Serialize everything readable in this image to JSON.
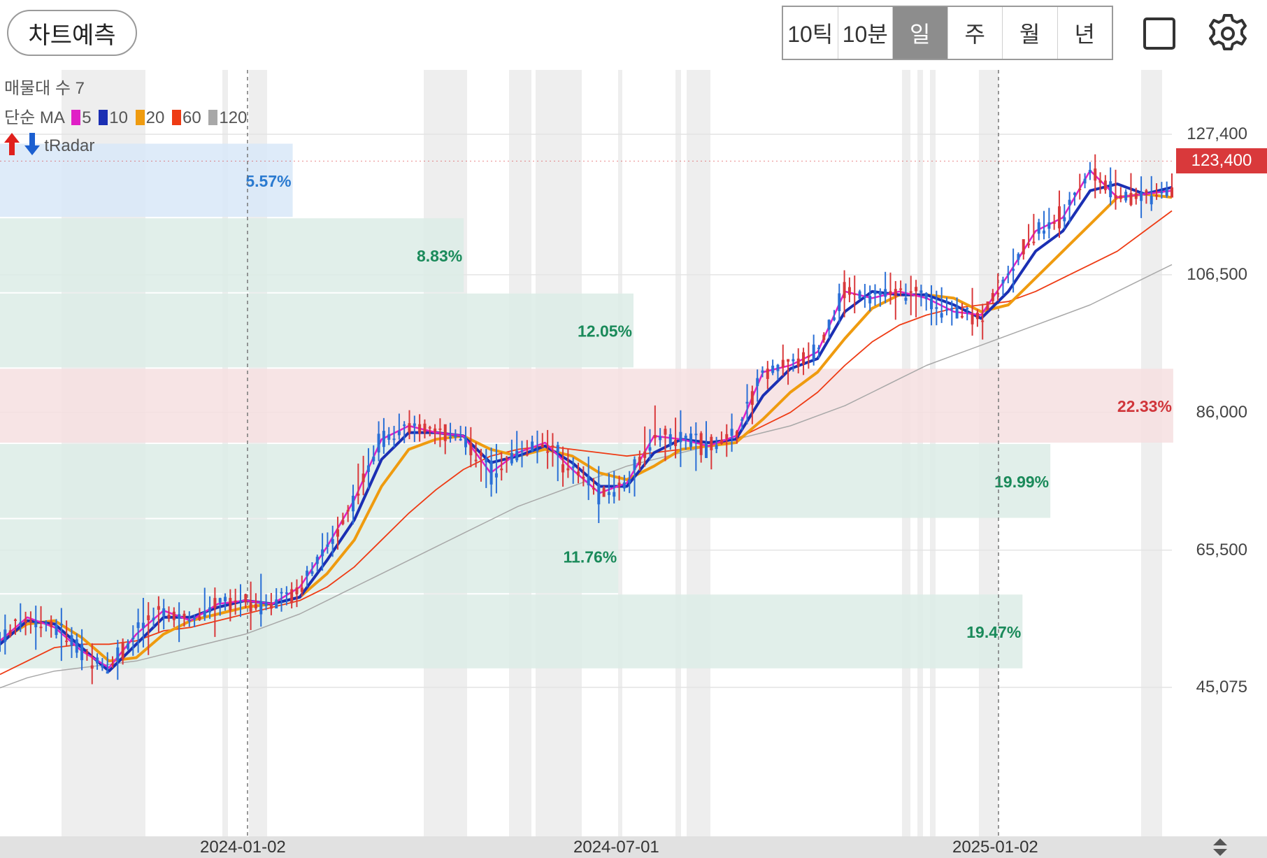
{
  "topbar": {
    "forecast_label": "차트예측",
    "periods": [
      "10틱",
      "10분",
      "일",
      "주",
      "월",
      "년"
    ],
    "active_period": "일"
  },
  "legend": {
    "volume_profile": "매물대 수 7",
    "ma_prefix": "단순 MA",
    "ma_items": [
      {
        "period": "5",
        "color": "#e01fc6"
      },
      {
        "period": "10",
        "color": "#1b2fb3"
      },
      {
        "period": "20",
        "color": "#ef9b0f"
      },
      {
        "period": "60",
        "color": "#ee3b14"
      },
      {
        "period": "120",
        "color": "#a8a8a8"
      }
    ],
    "tradar": "tRadar"
  },
  "y_axis": {
    "labels": [
      "127,400",
      "106,500",
      "86,000",
      "65,500",
      "45,075"
    ],
    "current_price": "123,400"
  },
  "x_axis": {
    "labels": [
      "2024-01-02",
      "2024-07-01",
      "2025-01-02"
    ]
  },
  "colors": {
    "up": "#d9393b",
    "down": "#2a6fd6",
    "band_green": "#dcece6",
    "band_blue": "#d8e8f8",
    "band_red": "#f6dfe0",
    "pct_green": "#1a8a5a",
    "pct_blue": "#2a7ad0",
    "pct_red": "#d0353a"
  },
  "volume_profile_bands": [
    {
      "pct": "5.57%",
      "color": "blue",
      "level_from": 115000,
      "level_to": 126100,
      "extent": 0.231
    },
    {
      "pct": "8.83%",
      "color": "green",
      "level_from": 103800,
      "level_to": 115000,
      "extent": 0.366
    },
    {
      "pct": "12.05%",
      "color": "green",
      "level_from": 92600,
      "level_to": 103800,
      "extent": 0.5
    },
    {
      "pct": "22.33%",
      "color": "red",
      "level_from": 81400,
      "level_to": 92600,
      "extent": 0.926
    },
    {
      "pct": "19.99%",
      "color": "green",
      "level_from": 70200,
      "level_to": 81400,
      "extent": 0.829
    },
    {
      "pct": "11.76%",
      "color": "green",
      "level_from": 59000,
      "level_to": 70200,
      "extent": 0.488
    },
    {
      "pct": "19.47%",
      "color": "green",
      "level_from": 47800,
      "level_to": 59000,
      "extent": 0.807
    }
  ],
  "chart_data": {
    "type": "line",
    "title": "",
    "y_ticks": [
      127400,
      106500,
      86000,
      65500,
      45075
    ],
    "x_ticks": [
      "2024-01-02",
      "2024-07-01",
      "2025-01-02"
    ],
    "series": [
      {
        "name": "5",
        "color": "#e01fc6",
        "values": [
          52000,
          55500,
          54000,
          50500,
          48000,
          53000,
          56500,
          55000,
          57500,
          58000,
          57500,
          60000,
          66000,
          73000,
          82000,
          84000,
          83000,
          82500,
          77000,
          80000,
          81500,
          77500,
          74000,
          75500,
          82500,
          82000,
          81000,
          82500,
          92000,
          93000,
          95000,
          104000,
          103000,
          104000,
          103000,
          101000,
          100500,
          106500,
          113000,
          115000,
          122000,
          118000,
          118500,
          119000
        ]
      },
      {
        "name": "10",
        "color": "#1b2fb3",
        "values": [
          51500,
          55000,
          54500,
          51000,
          47500,
          51500,
          55500,
          55500,
          57000,
          58000,
          57500,
          58500,
          64000,
          70000,
          79000,
          83000,
          83000,
          82500,
          78500,
          79500,
          81000,
          78500,
          75000,
          75000,
          80000,
          82000,
          81500,
          82000,
          88500,
          92500,
          94000,
          101000,
          104000,
          103500,
          103500,
          102000,
          100000,
          104000,
          110000,
          113000,
          119000,
          120000,
          118500,
          119500
        ]
      },
      {
        "name": "20",
        "color": "#ef9b0f",
        "values": [
          52000,
          54500,
          55000,
          52500,
          49000,
          49500,
          53000,
          55000,
          56000,
          57000,
          57500,
          58500,
          62000,
          67000,
          75000,
          80500,
          82000,
          82500,
          80500,
          79500,
          80500,
          79500,
          77000,
          76000,
          78000,
          80500,
          81000,
          81500,
          85000,
          89000,
          92000,
          97000,
          101500,
          103500,
          103500,
          103000,
          101000,
          102000,
          106000,
          110000,
          114000,
          118000,
          118500,
          118000
        ]
      },
      {
        "name": "60",
        "color": "#ee3b14",
        "values": [
          47000,
          49000,
          51000,
          51500,
          51500,
          52000,
          53500,
          54000,
          55000,
          56000,
          57000,
          58000,
          60000,
          63000,
          67000,
          71000,
          74500,
          77500,
          79500,
          80500,
          81000,
          80500,
          80000,
          79500,
          80000,
          80500,
          81000,
          82000,
          84000,
          86000,
          89000,
          93000,
          96500,
          99000,
          100500,
          101500,
          102000,
          102500,
          104000,
          106000,
          108000,
          110000,
          113000,
          116000
        ]
      },
      {
        "name": "120",
        "color": "#a8a8a8",
        "values": [
          45000,
          46500,
          47500,
          48000,
          48500,
          49000,
          50000,
          51000,
          52000,
          53000,
          54500,
          56000,
          58000,
          60000,
          62000,
          64000,
          66000,
          68000,
          70000,
          72000,
          73500,
          75000,
          76500,
          78000,
          79000,
          80000,
          81000,
          82000,
          83000,
          84000,
          85500,
          87000,
          89000,
          91000,
          93000,
          94500,
          96000,
          97500,
          99000,
          100500,
          102000,
          104000,
          106000,
          108000
        ]
      }
    ]
  }
}
